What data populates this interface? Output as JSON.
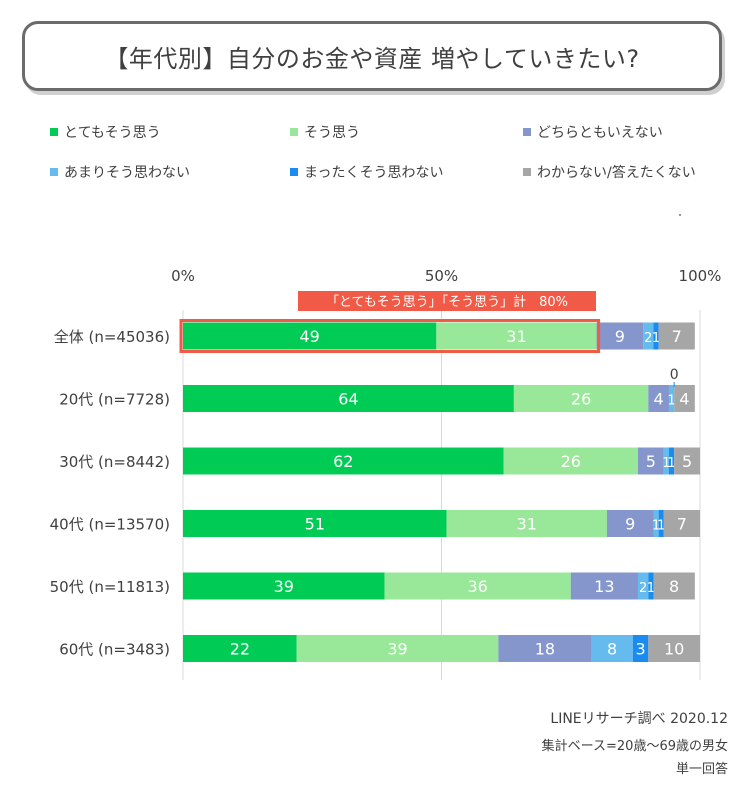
{
  "title": "【年代別】自分のお金や資産 増やしていきたい?",
  "legend": [
    {
      "label": "とてもそう思う",
      "color": "#00cc55"
    },
    {
      "label": "そう思う",
      "color": "#99e899"
    },
    {
      "label": "どちらともいえない",
      "color": "#8496cc"
    },
    {
      "label": "あまりそう思わない",
      "color": "#66bbee"
    },
    {
      "label": "まったくそう思わない",
      "color": "#1a8cf0"
    },
    {
      "label": "わからない/答えたくない",
      "color": "#a6a6a6"
    }
  ],
  "footer": {
    "source": "LINEリサーチ調べ 2020.12",
    "base": "集計ベース=20歳～69歳の男女",
    "type": "単一回答"
  },
  "chart_data": {
    "type": "bar",
    "orientation": "horizontal-stacked-100",
    "categories": [
      "全体 (n=45036)",
      "20代 (n=7728)",
      "30代 (n=8442)",
      "40代 (n=13570)",
      "50代 (n=11813)",
      "60代 (n=3483)"
    ],
    "series": [
      {
        "name": "とてもそう思う",
        "values": [
          49,
          64,
          62,
          51,
          39,
          22
        ]
      },
      {
        "name": "そう思う",
        "values": [
          31,
          26,
          26,
          31,
          36,
          39
        ]
      },
      {
        "name": "どちらともいえない",
        "values": [
          9,
          4,
          5,
          9,
          13,
          18
        ]
      },
      {
        "name": "あまりそう思わない",
        "values": [
          2,
          1,
          1,
          1,
          2,
          8
        ]
      },
      {
        "name": "まったくそう思わない",
        "values": [
          1,
          0,
          1,
          1,
          1,
          3
        ]
      },
      {
        "name": "わからない/答えたくない",
        "values": [
          7,
          4,
          5,
          7,
          8,
          10
        ]
      }
    ],
    "xlim": [
      0,
      100
    ],
    "xticks": [
      "0%",
      "50%",
      "100%"
    ],
    "annotation": {
      "label": "「とてもそう思う」「そう思う」計　80%",
      "row": 0
    },
    "above_label": {
      "row": 1,
      "series": 4,
      "text": "0"
    },
    "colors": [
      "#00cc55",
      "#99e899",
      "#8496cc",
      "#66bbee",
      "#1a8cf0",
      "#a6a6a6"
    ]
  }
}
